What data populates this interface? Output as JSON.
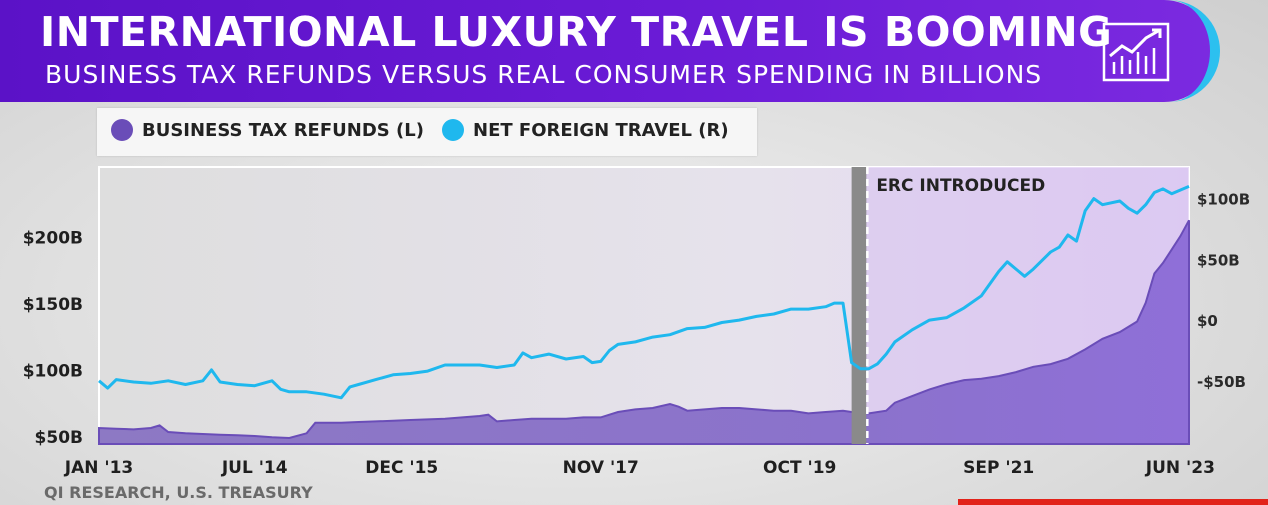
{
  "header": {
    "title": "INTERNATIONAL LUXURY TRAVEL IS BOOMING",
    "subtitle": "BUSINESS TAX REFUNDS VERSUS REAL CONSUMER SPENDING IN BILLIONS",
    "icon": "trend-chart-icon"
  },
  "source": "QI RESEARCH, U.S. TREASURY",
  "colors": {
    "banner": "#5b12c7",
    "accent_ring": "#2cc0ef",
    "tax_refunds": "#6a4db8",
    "net_foreign_travel": "#1fb8ee",
    "recession_band": "#8a8a8a",
    "brand_bar": "#e2231a"
  },
  "chart_data": {
    "type": "line",
    "title": "INTERNATIONAL LUXURY TRAVEL IS BOOMING",
    "subtitle": "BUSINESS TAX REFUNDS VERSUS REAL CONSUMER SPENDING IN BILLIONS",
    "legend_position": "top-left",
    "grid": false,
    "x_tick_labels": [
      "JAN '13",
      "JUL '14",
      "DEC '15",
      "NOV '17",
      "OCT '19",
      "SEP '21",
      "JUN '23"
    ],
    "x_tick_months": [
      0,
      18,
      35,
      58,
      81,
      104,
      125
    ],
    "y_left": {
      "ticks": [
        50,
        100,
        150,
        200
      ],
      "tick_labels": [
        "$50B",
        "$100B",
        "$150B",
        "$200B"
      ],
      "range": [
        44,
        252
      ]
    },
    "y_right": {
      "ticks": [
        -50,
        0,
        50,
        100
      ],
      "tick_labels": [
        "-$50B",
        "$0",
        "$50B",
        "$100B"
      ],
      "range": [
        -102,
        126
      ]
    },
    "x_range_months": [
      0,
      126
    ],
    "annotations": [
      {
        "text": "ERC INTRODUCED",
        "x_month": 88.7
      }
    ],
    "shaded_band": {
      "start_month": 87,
      "end_month": 88.7
    },
    "series": [
      {
        "name": "BUSINESS TAX REFUNDS (L)",
        "axis": "left",
        "style": "area",
        "points": [
          [
            0,
            56
          ],
          [
            2,
            55.5
          ],
          [
            4,
            55
          ],
          [
            6,
            56
          ],
          [
            7,
            58
          ],
          [
            8,
            53
          ],
          [
            10,
            52
          ],
          [
            12,
            51.5
          ],
          [
            14,
            51
          ],
          [
            16,
            50.5
          ],
          [
            18,
            50
          ],
          [
            20,
            49
          ],
          [
            22,
            48.5
          ],
          [
            24,
            52
          ],
          [
            25,
            60
          ],
          [
            28,
            60
          ],
          [
            30,
            60.5
          ],
          [
            32,
            61
          ],
          [
            34,
            61.5
          ],
          [
            36,
            62
          ],
          [
            38,
            62.5
          ],
          [
            40,
            63
          ],
          [
            42,
            64
          ],
          [
            44,
            65
          ],
          [
            45,
            66
          ],
          [
            46,
            61
          ],
          [
            48,
            62
          ],
          [
            50,
            63
          ],
          [
            52,
            63
          ],
          [
            54,
            63
          ],
          [
            56,
            64
          ],
          [
            58,
            64
          ],
          [
            60,
            68
          ],
          [
            62,
            70
          ],
          [
            64,
            71
          ],
          [
            66,
            74
          ],
          [
            67,
            72
          ],
          [
            68,
            69
          ],
          [
            70,
            70
          ],
          [
            72,
            71
          ],
          [
            74,
            71
          ],
          [
            76,
            70
          ],
          [
            78,
            69
          ],
          [
            80,
            69
          ],
          [
            82,
            67
          ],
          [
            84,
            68
          ],
          [
            86,
            69
          ],
          [
            87,
            68
          ],
          [
            89,
            67
          ],
          [
            91,
            69
          ],
          [
            92,
            75
          ],
          [
            94,
            80
          ],
          [
            96,
            85
          ],
          [
            98,
            89
          ],
          [
            100,
            92
          ],
          [
            102,
            93
          ],
          [
            104,
            95
          ],
          [
            106,
            98
          ],
          [
            108,
            102
          ],
          [
            110,
            104
          ],
          [
            112,
            108
          ],
          [
            114,
            115
          ],
          [
            116,
            123
          ],
          [
            118,
            128
          ],
          [
            120,
            136
          ],
          [
            121,
            150
          ],
          [
            122,
            172
          ],
          [
            123,
            180
          ],
          [
            124,
            190
          ],
          [
            125,
            200
          ],
          [
            126,
            212
          ]
        ]
      },
      {
        "name": "NET FOREIGN TRAVEL (R)",
        "axis": "right",
        "style": "line",
        "points": [
          [
            0,
            -50
          ],
          [
            1,
            -56
          ],
          [
            2,
            -49
          ],
          [
            4,
            -51
          ],
          [
            6,
            -52
          ],
          [
            8,
            -50
          ],
          [
            10,
            -53
          ],
          [
            12,
            -50
          ],
          [
            13,
            -41
          ],
          [
            14,
            -51
          ],
          [
            16,
            -53
          ],
          [
            18,
            -54
          ],
          [
            20,
            -50
          ],
          [
            21,
            -57
          ],
          [
            22,
            -59
          ],
          [
            24,
            -59
          ],
          [
            26,
            -61
          ],
          [
            28,
            -64
          ],
          [
            29,
            -55
          ],
          [
            30,
            -53
          ],
          [
            32,
            -49
          ],
          [
            34,
            -45
          ],
          [
            36,
            -44
          ],
          [
            38,
            -42
          ],
          [
            40,
            -37
          ],
          [
            42,
            -37
          ],
          [
            44,
            -37
          ],
          [
            46,
            -39
          ],
          [
            48,
            -37
          ],
          [
            49,
            -27
          ],
          [
            50,
            -31
          ],
          [
            52,
            -28
          ],
          [
            54,
            -32
          ],
          [
            56,
            -30
          ],
          [
            57,
            -35
          ],
          [
            58,
            -34
          ],
          [
            59,
            -25
          ],
          [
            60,
            -20
          ],
          [
            62,
            -18
          ],
          [
            64,
            -14
          ],
          [
            66,
            -12
          ],
          [
            68,
            -7
          ],
          [
            70,
            -6
          ],
          [
            72,
            -2
          ],
          [
            74,
            0
          ],
          [
            76,
            3
          ],
          [
            78,
            5
          ],
          [
            80,
            9
          ],
          [
            82,
            9
          ],
          [
            84,
            11
          ],
          [
            85,
            14
          ],
          [
            86,
            14
          ],
          [
            87,
            -35
          ],
          [
            88,
            -40
          ],
          [
            89,
            -40
          ],
          [
            90,
            -36
          ],
          [
            91,
            -28
          ],
          [
            92,
            -18
          ],
          [
            94,
            -8
          ],
          [
            96,
            0
          ],
          [
            98,
            2
          ],
          [
            100,
            10
          ],
          [
            102,
            20
          ],
          [
            104,
            40
          ],
          [
            105,
            48
          ],
          [
            106,
            42
          ],
          [
            107,
            36
          ],
          [
            108,
            42
          ],
          [
            110,
            56
          ],
          [
            111,
            60
          ],
          [
            112,
            70
          ],
          [
            113,
            65
          ],
          [
            114,
            90
          ],
          [
            115,
            100
          ],
          [
            116,
            95
          ],
          [
            118,
            98
          ],
          [
            119,
            92
          ],
          [
            120,
            88
          ],
          [
            121,
            95
          ],
          [
            122,
            105
          ],
          [
            123,
            108
          ],
          [
            124,
            104
          ],
          [
            126,
            110
          ]
        ]
      }
    ]
  }
}
